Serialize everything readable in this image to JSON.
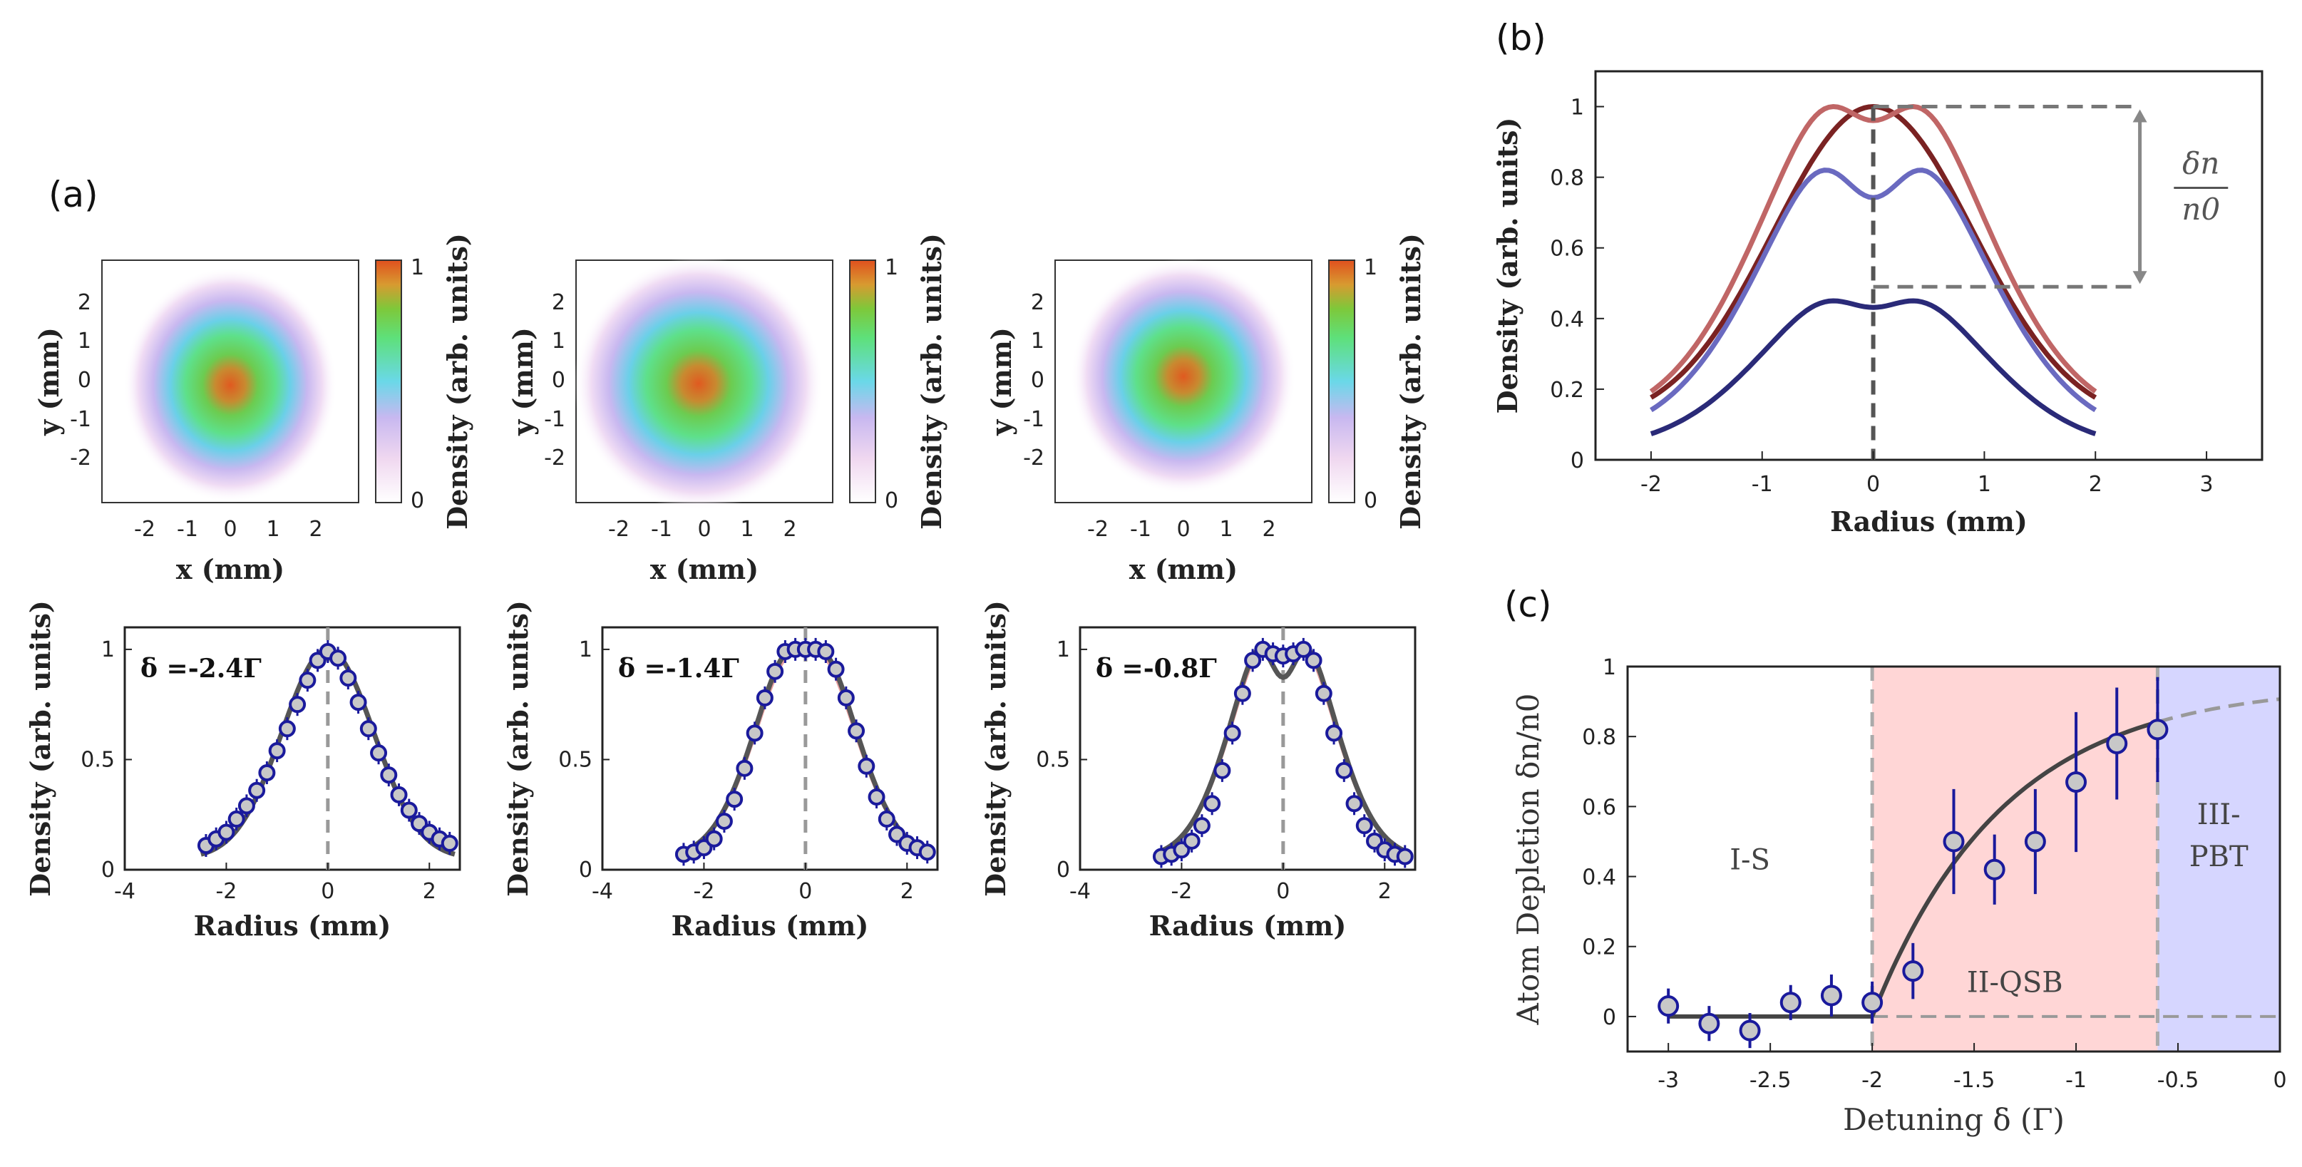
{
  "panel_labels": {
    "a": "(a)",
    "b": "(b)",
    "c": "(c)"
  },
  "colors": {
    "fit_line": "#555555",
    "marker_edge": "#1a1a9c",
    "marker_face": "#c8c8c8",
    "dashed": "#999999",
    "region_ii": "#ffd6d6",
    "region_iii": "#d6d6ff"
  },
  "images": [
    {
      "xlabel": "x (mm)",
      "ylabel": "y (mm)",
      "xticks": [
        "-2",
        "-1",
        "0",
        "1",
        "2"
      ],
      "yticks": [
        "2",
        "1",
        "0",
        "-1",
        "-2"
      ],
      "cbar_label": "Density (arb. units)",
      "cbar_ticks": [
        "1",
        "0"
      ],
      "blob_peak": 0.95,
      "blob_spread": 0.9
    },
    {
      "xlabel": "x (mm)",
      "ylabel": "y (mm)",
      "xticks": [
        "-2",
        "-1",
        "0",
        "1",
        "2"
      ],
      "yticks": [
        "2",
        "1",
        "0",
        "-1",
        "-2"
      ],
      "cbar_label": "Density (arb. units)",
      "cbar_ticks": [
        "1",
        "0"
      ],
      "blob_peak": 0.9,
      "blob_spread": 1.15
    },
    {
      "xlabel": "x (mm)",
      "ylabel": "y (mm)",
      "xticks": [
        "-2",
        "-1",
        "0",
        "1",
        "2"
      ],
      "yticks": [
        "2",
        "1",
        "0",
        "-1",
        "-2"
      ],
      "cbar_label": "Density (arb. units)",
      "cbar_ticks": [
        "1",
        "0"
      ],
      "blob_peak": 0.95,
      "blob_spread": 1.0
    }
  ],
  "chart_data": [
    {
      "id": "a-profile-1",
      "type": "scatter",
      "annotation": "δ =-2.4Γ",
      "xlabel": "Radius (mm)",
      "ylabel": "Density (arb. units)",
      "xlim": [
        -4,
        2.6
      ],
      "ylim": [
        0,
        1.1
      ],
      "xticks": [
        -4,
        -2,
        0,
        2
      ],
      "yticks": [
        0,
        0.5,
        1
      ],
      "vline_x": 0,
      "depth": 0.0,
      "points_x": [
        -2.4,
        -2.2,
        -2.0,
        -1.8,
        -1.6,
        -1.4,
        -1.2,
        -1.0,
        -0.8,
        -0.6,
        -0.4,
        -0.2,
        0.0,
        0.2,
        0.4,
        0.6,
        0.8,
        1.0,
        1.2,
        1.4,
        1.6,
        1.8,
        2.0,
        2.2,
        2.4
      ],
      "points_y": [
        0.11,
        0.14,
        0.17,
        0.23,
        0.29,
        0.36,
        0.44,
        0.54,
        0.64,
        0.75,
        0.86,
        0.95,
        0.99,
        0.96,
        0.87,
        0.76,
        0.64,
        0.53,
        0.43,
        0.34,
        0.27,
        0.21,
        0.17,
        0.14,
        0.12
      ]
    },
    {
      "id": "a-profile-2",
      "type": "scatter",
      "annotation": "δ =-1.4Γ",
      "xlabel": "Radius (mm)",
      "ylabel": "Density (arb. units)",
      "xlim": [
        -4,
        2.6
      ],
      "ylim": [
        0,
        1.1
      ],
      "xticks": [
        -4,
        -2,
        0,
        2
      ],
      "yticks": [
        0,
        0.5,
        1
      ],
      "vline_x": 0,
      "depth": 0.13,
      "points_x": [
        -2.4,
        -2.2,
        -2.0,
        -1.8,
        -1.6,
        -1.4,
        -1.2,
        -1.0,
        -0.8,
        -0.6,
        -0.4,
        -0.2,
        0.0,
        0.2,
        0.4,
        0.6,
        0.8,
        1.0,
        1.2,
        1.4,
        1.6,
        1.8,
        2.0,
        2.2,
        2.4
      ],
      "points_y": [
        0.07,
        0.08,
        0.1,
        0.14,
        0.22,
        0.32,
        0.46,
        0.62,
        0.78,
        0.9,
        0.99,
        1.0,
        1.0,
        1.0,
        0.99,
        0.91,
        0.78,
        0.63,
        0.47,
        0.33,
        0.23,
        0.16,
        0.12,
        0.1,
        0.08
      ]
    },
    {
      "id": "a-profile-3",
      "type": "scatter",
      "annotation": "δ =-0.8Γ",
      "xlabel": "Radius (mm)",
      "ylabel": "Density (arb. units)",
      "xlim": [
        -4,
        2.6
      ],
      "ylim": [
        0,
        1.1
      ],
      "xticks": [
        -4,
        -2,
        0,
        2
      ],
      "yticks": [
        0,
        0.5,
        1
      ],
      "vline_x": 0,
      "depth": 0.38,
      "points_x": [
        -2.4,
        -2.2,
        -2.0,
        -1.8,
        -1.6,
        -1.4,
        -1.2,
        -1.0,
        -0.8,
        -0.6,
        -0.4,
        -0.2,
        0.0,
        0.2,
        0.4,
        0.6,
        0.8,
        1.0,
        1.2,
        1.4,
        1.6,
        1.8,
        2.0,
        2.2,
        2.4
      ],
      "points_y": [
        0.06,
        0.07,
        0.09,
        0.13,
        0.2,
        0.3,
        0.45,
        0.62,
        0.8,
        0.95,
        1.0,
        0.98,
        0.97,
        0.98,
        1.0,
        0.95,
        0.8,
        0.62,
        0.45,
        0.3,
        0.2,
        0.13,
        0.09,
        0.07,
        0.06
      ]
    },
    {
      "id": "b",
      "type": "line",
      "xlabel": "Radius (mm)",
      "ylabel": "Density (arb. units)",
      "xlim": [
        -2.5,
        3.5
      ],
      "ylim": [
        0,
        1.1
      ],
      "xticks": [
        -2,
        -1,
        0,
        1,
        2,
        3
      ],
      "yticks": [
        0,
        0.2,
        0.4,
        0.6,
        0.8,
        1
      ],
      "annotation": "δn / n0",
      "frac_num": "δn",
      "frac_den": "n0",
      "x_range": [
        -2,
        2
      ],
      "series": [
        {
          "name": "curve-1",
          "color": "#7a2222",
          "peak": 1.0,
          "depth": 0.0,
          "floor": 0.1
        },
        {
          "name": "curve-2",
          "color": "#c06666",
          "peak": 1.0,
          "depth": 0.23,
          "floor": 0.1
        },
        {
          "name": "curve-3",
          "color": "#6a6ac0",
          "peak": 0.82,
          "depth": 0.33,
          "floor": 0.06
        },
        {
          "name": "curve-4",
          "color": "#2a2a78",
          "peak": 0.45,
          "depth": 0.23,
          "floor": 0.03
        }
      ],
      "dashed_top_y": 1.0,
      "dashed_bottom_y": 0.49
    },
    {
      "id": "c",
      "type": "scatter",
      "xlabel": "Detuning δ (Γ)",
      "ylabel": "Atom Depletion δn/n0",
      "xlim": [
        -3.2,
        0
      ],
      "ylim": [
        -0.1,
        1
      ],
      "xticks": [
        -3,
        -2.5,
        -2,
        -1.5,
        -1,
        -0.5,
        0
      ],
      "xtick_labels": [
        "-3",
        "-2.5",
        "-2",
        "-1.5",
        "-1",
        "-0.5",
        "0"
      ],
      "yticks": [
        0,
        0.2,
        0.4,
        0.6,
        0.8,
        1
      ],
      "regions": [
        {
          "label": "I-S",
          "x0": -3.2,
          "x1": -2.0
        },
        {
          "label": "II-QSB",
          "x0": -2.0,
          "x1": -0.6
        },
        {
          "label": "III-PBT",
          "x0": -0.6,
          "x1": 0.0
        }
      ],
      "region_iii_lines": [
        "III-",
        "PBT"
      ],
      "threshold": -2.0,
      "points_x": [
        -3.0,
        -2.8,
        -2.6,
        -2.4,
        -2.2,
        -2.0,
        -1.8,
        -1.6,
        -1.4,
        -1.2,
        -1.0,
        -0.8,
        -0.6
      ],
      "points_y": [
        0.03,
        -0.02,
        -0.04,
        0.04,
        0.06,
        0.04,
        0.13,
        0.5,
        0.42,
        0.5,
        0.67,
        0.78,
        0.82
      ],
      "errors": [
        0.05,
        0.05,
        0.05,
        0.05,
        0.06,
        0.06,
        0.08,
        0.15,
        0.1,
        0.15,
        0.2,
        0.16,
        0.15
      ]
    }
  ]
}
